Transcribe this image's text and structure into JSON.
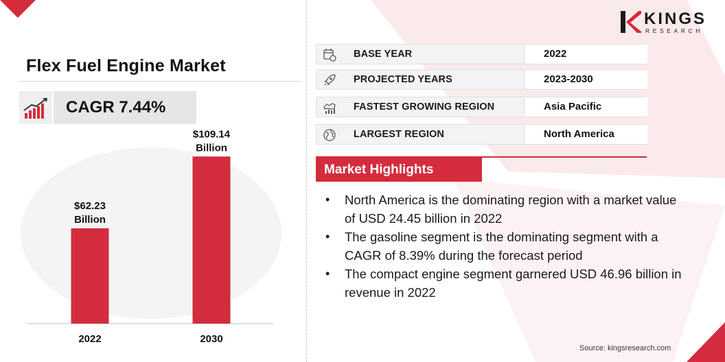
{
  "title": "Flex Fuel Engine Market",
  "cagr": "CAGR 7.44%",
  "logo": {
    "word": "KINGS",
    "sub": "RESEARCH"
  },
  "colors": {
    "accent": "#d42c3c",
    "bar": "#d22c3e"
  },
  "info": [
    {
      "icon": "calendar-icon",
      "label": "BASE YEAR",
      "value": "2022"
    },
    {
      "icon": "rocket-icon",
      "label": "PROJECTED YEARS",
      "value": "2023-2030"
    },
    {
      "icon": "region-growth-icon",
      "label": "FASTEST GROWING REGION",
      "value": "Asia Pacific"
    },
    {
      "icon": "globe-icon",
      "label": "LARGEST REGION",
      "value": "North America"
    }
  ],
  "highlights": {
    "title": "Market Highlights",
    "items": [
      "North America is the dominating region with a market value of USD 24.45 billion in 2022",
      "The gasoline segment is the dominating segment with a CAGR of 8.39% during the forecast period",
      "The compact engine segment garnered USD 46.96 billion in revenue in 2022"
    ]
  },
  "source": "Source: kingsresearch.com",
  "chart_data": {
    "type": "bar",
    "categories": [
      "2022",
      "2030"
    ],
    "values": [
      62.23,
      109.14
    ],
    "labels": [
      [
        "$62.23",
        "Billion"
      ],
      [
        "$109.14",
        "Billion"
      ]
    ],
    "ylim": [
      0,
      120
    ],
    "unit": "USD Billion"
  }
}
